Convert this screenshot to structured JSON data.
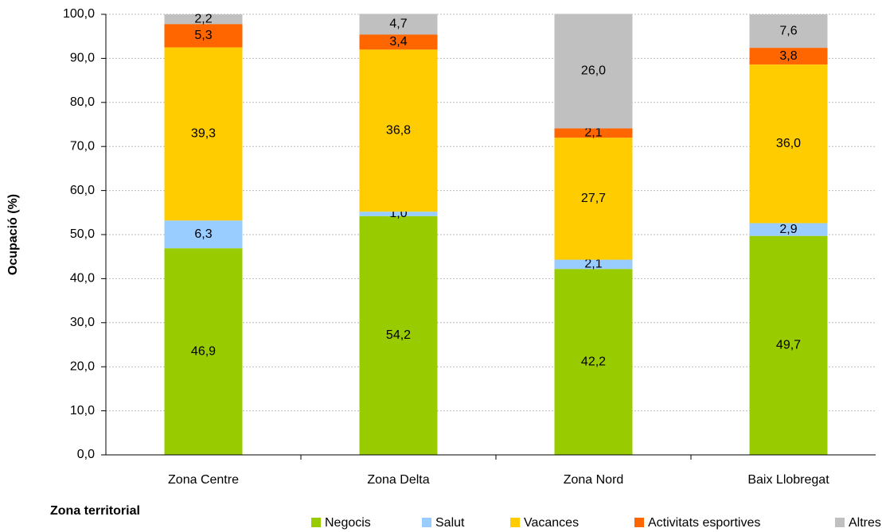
{
  "chart_data": {
    "type": "stacked_bar",
    "x_label": "Zona territorial",
    "y_label": "Ocupació (%)",
    "categories": [
      "Zona Centre",
      "Zona Delta",
      "Zona Nord",
      "Baix  Llobregat"
    ],
    "series": [
      {
        "name": "Negocis",
        "color": "#99cc00",
        "values": [
          46.9,
          54.2,
          42.2,
          49.7
        ],
        "value_labels": [
          "46,9",
          "54,2",
          "42,2",
          "49,7"
        ]
      },
      {
        "name": "Salut",
        "color": "#99ccff",
        "values": [
          6.3,
          1.0,
          2.1,
          2.9
        ],
        "value_labels": [
          "6,3",
          "1,0",
          "2,1",
          "2,9"
        ]
      },
      {
        "name": "Vacances",
        "color": "#ffcc00",
        "values": [
          39.3,
          36.8,
          27.7,
          36.0
        ],
        "value_labels": [
          "39,3",
          "36,8",
          "27,7",
          "36,0"
        ]
      },
      {
        "name": "Activitats esportives",
        "color": "#ff6600",
        "values": [
          5.3,
          3.4,
          2.1,
          3.8
        ],
        "value_labels": [
          "5,3",
          "3,4",
          "2,1",
          "3,8"
        ]
      },
      {
        "name": "Altres",
        "color": "#c0c0c0",
        "values": [
          2.2,
          4.7,
          26.0,
          7.6
        ],
        "value_labels": [
          "2,2",
          "4,7",
          "26,0",
          "7,6"
        ]
      }
    ],
    "ylim": [
      0,
      100
    ],
    "yticks": [
      {
        "value": 0,
        "label": "0,0"
      },
      {
        "value": 10,
        "label": "10,0"
      },
      {
        "value": 20,
        "label": "20,0"
      },
      {
        "value": 30,
        "label": "30,0"
      },
      {
        "value": 40,
        "label": "40,0"
      },
      {
        "value": 50,
        "label": "50,0"
      },
      {
        "value": 60,
        "label": "60,0"
      },
      {
        "value": 70,
        "label": "70,0"
      },
      {
        "value": 80,
        "label": "80,0"
      },
      {
        "value": 90,
        "label": "90,0"
      },
      {
        "value": 100,
        "label": "100,0"
      }
    ],
    "grid": true,
    "legend": "bottom"
  }
}
